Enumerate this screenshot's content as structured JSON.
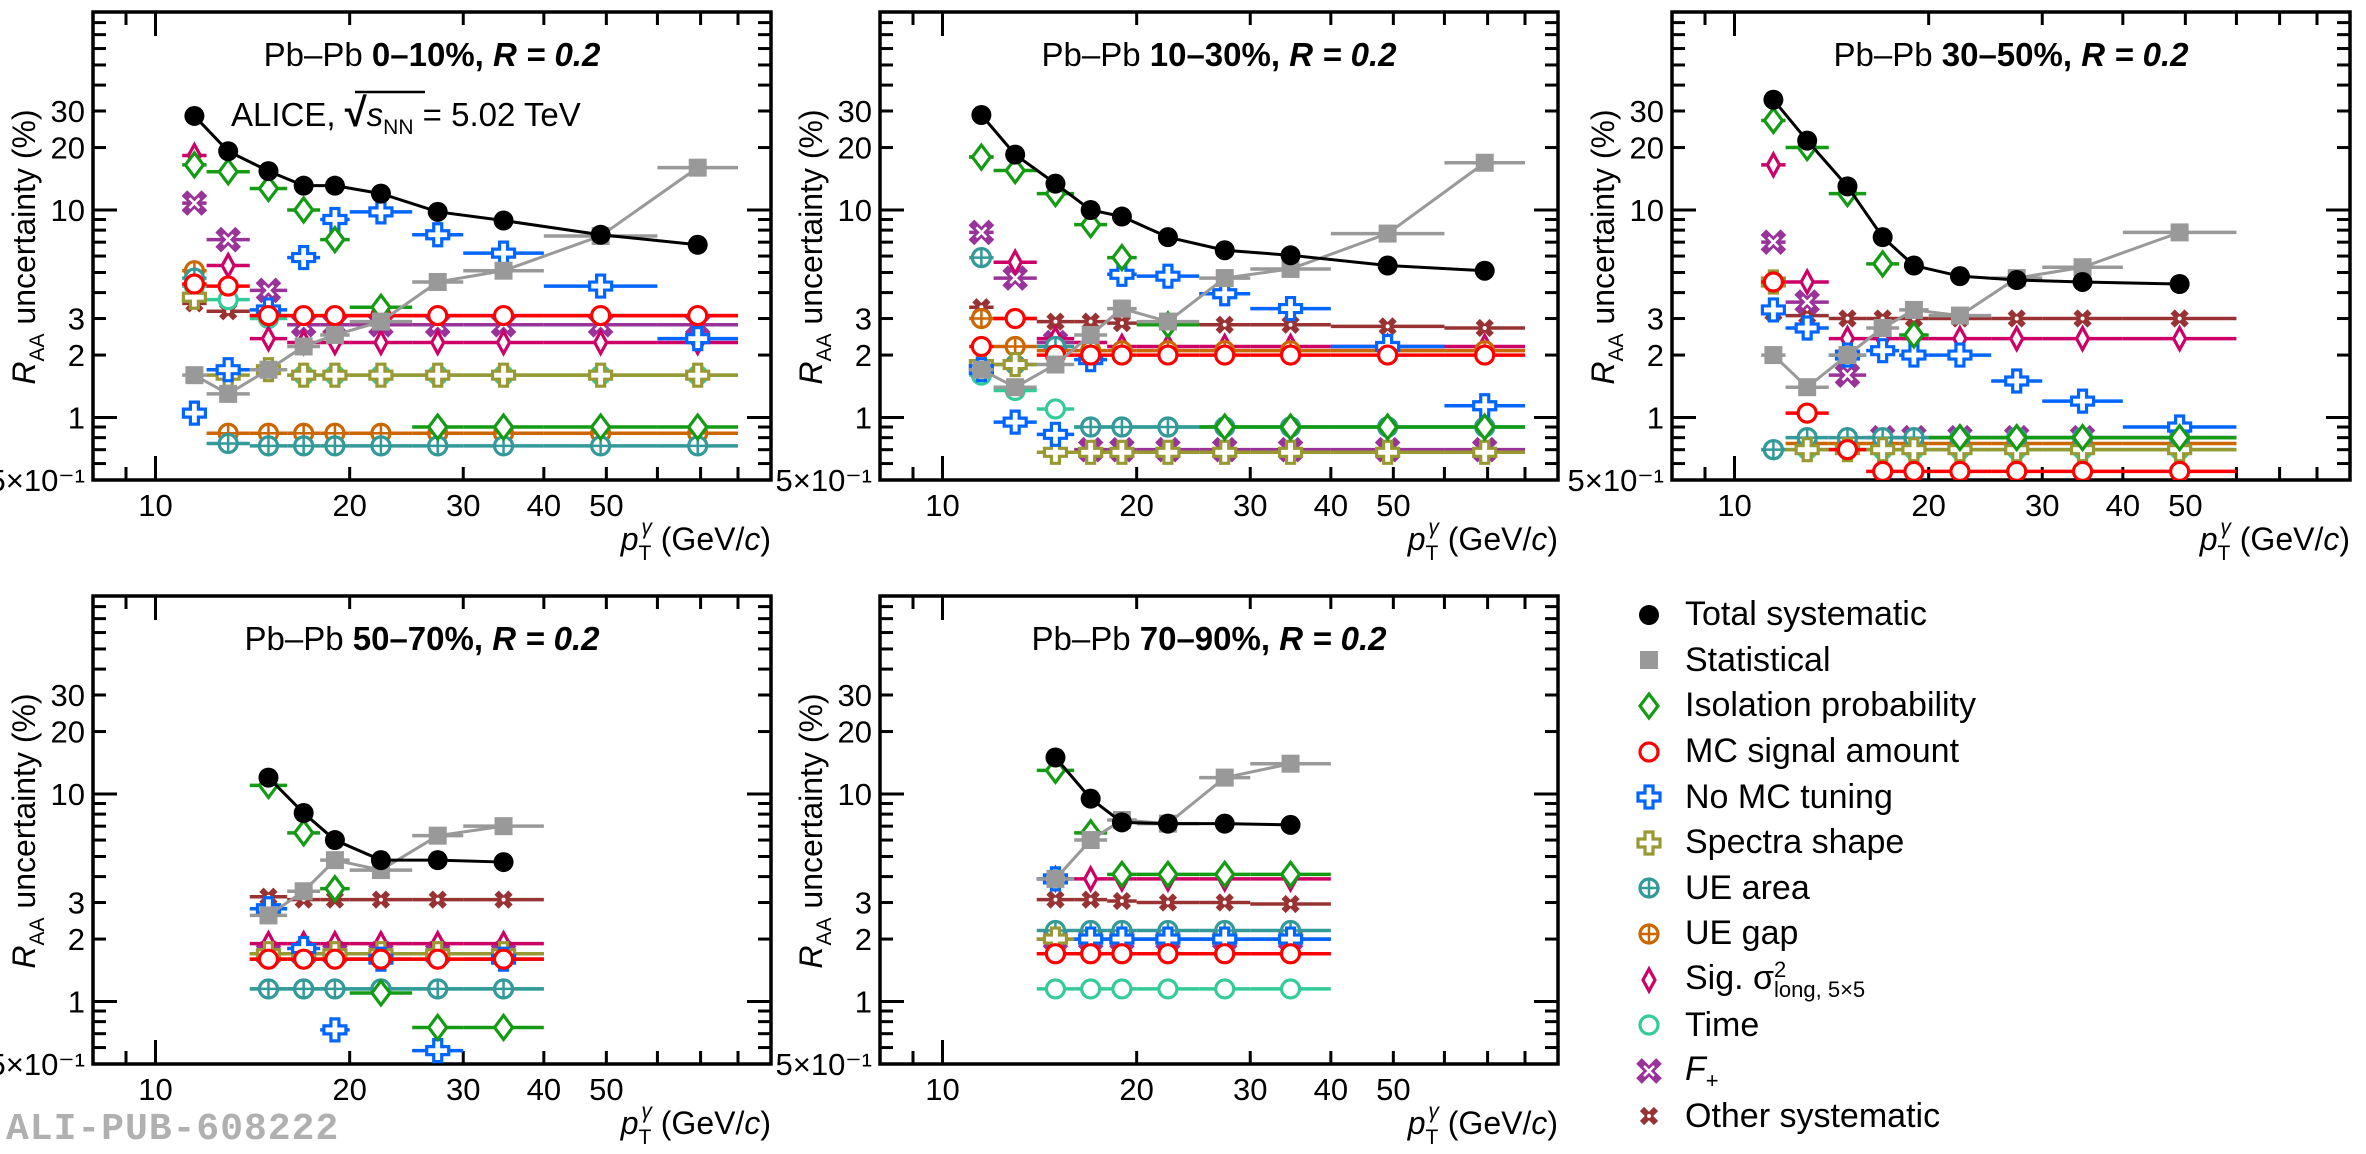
{
  "watermark": "ALI-PUB-608222",
  "colors": {
    "Total systematic": "#000000",
    "Statistical": "#999999",
    "Isolation probability": "#149b14",
    "MC signal amount": "#ff0000",
    "No MC tuning": "#0066ff",
    "Spectra shape": "#999933",
    "UE area": "#339999",
    "UE gap": "#cc6600",
    "Sig": "#cc0066",
    "Time": "#33cc99",
    "F+": "#993399",
    "Other systematic": "#993333"
  },
  "legend": [
    {
      "key": "Total systematic",
      "marker": "filled-circle",
      "label": "Total systematic"
    },
    {
      "key": "Statistical",
      "marker": "filled-square",
      "label": "Statistical"
    },
    {
      "key": "Isolation probability",
      "marker": "open-diamond",
      "label": "Isolation probability"
    },
    {
      "key": "MC signal amount",
      "marker": "open-circle",
      "label": "MC signal amount"
    },
    {
      "key": "No MC tuning",
      "marker": "open-cross",
      "label": "No MC tuning"
    },
    {
      "key": "Spectra shape",
      "marker": "open-cross",
      "label": "Spectra shape"
    },
    {
      "key": "UE area",
      "marker": "circle-plus",
      "label": "UE area"
    },
    {
      "key": "UE gap",
      "marker": "circle-plus",
      "label": "UE gap"
    },
    {
      "key": "Sig",
      "marker": "thin-diamond",
      "label": "Sig. σ",
      "sup": "2",
      "sub": "long, 5×5"
    },
    {
      "key": "Time",
      "marker": "open-circle",
      "label": "Time"
    },
    {
      "key": "F+",
      "marker": "open-x",
      "label": "F",
      "sub": "+"
    },
    {
      "key": "Other systematic",
      "marker": "small-x",
      "label": "Other systematic"
    }
  ],
  "chart_data": [
    {
      "type": "scatter",
      "title": "Pb–Pb 0–10%, R = 0.2",
      "title_parts": {
        "system": "Pb–Pb",
        "centrality": "0–10%",
        "radius": "R = 0.2"
      },
      "subtitle": "ALICE, √sNN = 5.02 TeV",
      "subtitle_parts": {
        "experiment": "ALICE,",
        "s": "s",
        "s_sub": "NN",
        "energy": "= 5.02 TeV"
      },
      "xlabel": "pTγ (GeV/c)",
      "ylabel": "RAA uncertainty (%)",
      "xscale": "log",
      "yscale": "log",
      "xlim": [
        8,
        90
      ],
      "ylim": [
        0.5,
        90
      ],
      "x_ticks": [
        "10",
        "20",
        "30",
        "40",
        "50"
      ],
      "y_ticks": [
        "5×10⁻¹",
        "1",
        "2",
        "3",
        "10",
        "20",
        "30"
      ],
      "x_edges": [
        11,
        12,
        14,
        16,
        18,
        20,
        25,
        30,
        40,
        60,
        80
      ],
      "series": [
        {
          "name": "Total systematic",
          "values": [
            28.4,
            19.2,
            15.4,
            13.1,
            13.1,
            12.0,
            9.8,
            8.9,
            7.6,
            6.8
          ]
        },
        {
          "name": "Statistical",
          "values": [
            1.6,
            1.3,
            1.7,
            2.2,
            2.5,
            2.9,
            4.5,
            5.1,
            7.5,
            16
          ]
        },
        {
          "name": "Isolation probability",
          "values": [
            16.5,
            15.3,
            12.7,
            10,
            7.2,
            3.4,
            0.9,
            0.9,
            0.9,
            0.9
          ]
        },
        {
          "name": "MC signal amount",
          "values": [
            4.4,
            4.3,
            3.1,
            3.1,
            3.1,
            3.1,
            3.1,
            3.1,
            3.1,
            3.1
          ]
        },
        {
          "name": "No MC tuning",
          "values": [
            1.05,
            1.7,
            3.3,
            5.9,
            9.0,
            9.8,
            7.6,
            6.2,
            4.3,
            2.4
          ]
        },
        {
          "name": "Spectra shape",
          "values": [
            3.8,
            1.6,
            1.7,
            1.6,
            1.6,
            1.6,
            1.6,
            1.6,
            1.6,
            1.6
          ]
        },
        {
          "name": "UE area",
          "values": [
            4.7,
            0.75,
            0.73,
            0.73,
            0.73,
            0.73,
            0.73,
            0.73,
            0.73,
            0.73
          ]
        },
        {
          "name": "UE gap",
          "values": [
            5.1,
            0.84,
            0.84,
            0.84,
            0.84,
            0.84,
            0.84,
            0.84,
            0.84,
            0.84
          ]
        },
        {
          "name": "Sig",
          "values": [
            18.3,
            5.4,
            2.4,
            2.3,
            2.3,
            2.3,
            2.3,
            2.3,
            2.3,
            2.3
          ]
        },
        {
          "name": "Time",
          "values": [
            4.3,
            3.7,
            3.0,
            1.6,
            1.6,
            1.6,
            1.6,
            1.6,
            1.6,
            1.6
          ]
        },
        {
          "name": "F+",
          "values": [
            10.8,
            7.2,
            4.1,
            2.8,
            2.8,
            2.8,
            2.8,
            2.8,
            2.8,
            2.8
          ]
        },
        {
          "name": "Other systematic",
          "values": [
            3.55,
            3.25,
            3.1,
            3.1,
            3.1,
            3.1,
            3.1,
            3.1,
            3.1,
            3.1
          ]
        }
      ]
    },
    {
      "type": "scatter",
      "title": "Pb–Pb 10–30%, R = 0.2",
      "title_parts": {
        "system": "Pb–Pb",
        "centrality": "10–30%",
        "radius": "R = 0.2"
      },
      "xlabel": "pTγ (GeV/c)",
      "ylabel": "RAA uncertainty (%)",
      "xscale": "log",
      "yscale": "log",
      "xlim": [
        8,
        90
      ],
      "ylim": [
        0.5,
        90
      ],
      "x_ticks": [
        "10",
        "20",
        "30",
        "40",
        "50"
      ],
      "y_ticks": [
        "5×10⁻¹",
        "1",
        "2",
        "3",
        "10",
        "20",
        "30"
      ],
      "x_edges": [
        11,
        12,
        14,
        16,
        18,
        20,
        25,
        30,
        40,
        60,
        80
      ],
      "series": [
        {
          "name": "Total systematic",
          "values": [
            28.7,
            18.5,
            13.4,
            10,
            9.3,
            7.4,
            6.4,
            6.05,
            5.4,
            5.1
          ]
        },
        {
          "name": "Statistical",
          "values": [
            1.7,
            1.4,
            1.8,
            2.5,
            3.35,
            2.9,
            4.7,
            5.2,
            7.7,
            16.9
          ]
        },
        {
          "name": "Isolation probability",
          "values": [
            18,
            15.5,
            12,
            8.5,
            5.9,
            2.8,
            0.9,
            0.9,
            0.9,
            0.9
          ]
        },
        {
          "name": "MC signal amount",
          "values": [
            2.2,
            3.0,
            2.0,
            2.0,
            2.0,
            2.0,
            2.0,
            2.0,
            2.0,
            2.0
          ]
        },
        {
          "name": "No MC tuning",
          "values": [
            1.7,
            0.95,
            0.83,
            1.9,
            4.9,
            4.8,
            3.95,
            3.35,
            2.2,
            1.14
          ]
        },
        {
          "name": "Spectra shape",
          "values": [
            1.8,
            1.8,
            0.68,
            0.68,
            0.68,
            0.68,
            0.68,
            0.68,
            0.68,
            0.68
          ]
        },
        {
          "name": "UE area",
          "values": [
            5.9,
            1.8,
            2.2,
            0.9,
            0.9,
            0.9,
            0.9,
            0.9,
            0.9,
            0.9
          ]
        },
        {
          "name": "UE gap",
          "values": [
            3.0,
            2.2,
            2.1,
            2.1,
            2.1,
            2.1,
            2.1,
            2.1,
            2.1,
            2.1
          ]
        },
        {
          "name": "Sig",
          "values": [
            18,
            5.6,
            2.4,
            2.3,
            2.2,
            2.2,
            2.2,
            2.2,
            2.2,
            2.2
          ]
        },
        {
          "name": "Time",
          "values": [
            1.6,
            1.35,
            1.1,
            0.9,
            0.9,
            0.9,
            0.9,
            0.9,
            0.9,
            0.9
          ]
        },
        {
          "name": "F+",
          "values": [
            7.8,
            4.7,
            2.3,
            0.7,
            0.7,
            0.7,
            0.7,
            0.7,
            0.7,
            0.7
          ]
        },
        {
          "name": "Other systematic",
          "values": [
            3.4,
            3.0,
            2.9,
            2.9,
            2.85,
            2.85,
            2.8,
            2.8,
            2.75,
            2.7
          ]
        }
      ]
    },
    {
      "type": "scatter",
      "title": "Pb–Pb 30–50%, R = 0.2",
      "title_parts": {
        "system": "Pb–Pb",
        "centrality": "30–50%",
        "radius": "R = 0.2"
      },
      "xlabel": "pTγ (GeV/c)",
      "ylabel": "RAA uncertainty (%)",
      "xscale": "log",
      "yscale": "log",
      "xlim": [
        8,
        90
      ],
      "ylim": [
        0.5,
        90
      ],
      "x_ticks": [
        "10",
        "20",
        "30",
        "40",
        "50"
      ],
      "y_ticks": [
        "5×10⁻¹",
        "1",
        "2",
        "3",
        "10",
        "20",
        "30"
      ],
      "x_edges": [
        11,
        12,
        14,
        16,
        18,
        20,
        25,
        30,
        40,
        60
      ],
      "series": [
        {
          "name": "Total systematic",
          "values": [
            34,
            21.6,
            13,
            7.4,
            5.4,
            4.8,
            4.6,
            4.5,
            4.4
          ]
        },
        {
          "name": "Statistical",
          "values": [
            2.0,
            1.4,
            2.0,
            2.7,
            3.3,
            3.1,
            4.7,
            5.3,
            7.8
          ]
        },
        {
          "name": "Isolation probability",
          "values": [
            27,
            20,
            12,
            5.5,
            2.5,
            0.8,
            0.8,
            0.8,
            0.8
          ]
        },
        {
          "name": "MC signal amount",
          "values": [
            4.5,
            1.05,
            0.7,
            0.55,
            0.55,
            0.55,
            0.55,
            0.55,
            0.55
          ]
        },
        {
          "name": "No MC tuning",
          "values": [
            3.3,
            2.7,
            2.0,
            2.1,
            2.0,
            2.0,
            1.5,
            1.2,
            0.9
          ]
        },
        {
          "name": "Spectra shape",
          "values": [
            4.5,
            0.7,
            0.7,
            0.7,
            0.7,
            0.7,
            0.7,
            0.7,
            0.7
          ]
        },
        {
          "name": "UE area",
          "values": [
            0.7,
            0.8,
            0.8,
            0.8,
            0.8,
            0.8,
            0.8,
            0.8,
            0.8
          ]
        },
        {
          "name": "UE gap",
          "values": [
            4.5,
            0.75,
            0.75,
            0.75,
            0.75,
            0.75,
            0.75,
            0.75,
            0.75
          ]
        },
        {
          "name": "Sig",
          "values": [
            16.5,
            4.5,
            2.4,
            2.4,
            2.4,
            2.4,
            2.4,
            2.4,
            2.4
          ]
        },
        {
          "name": "Time",
          "values": [
            0.7,
            0.7,
            0.7,
            0.7,
            0.7,
            0.7,
            0.7,
            0.7,
            0.7
          ]
        },
        {
          "name": "F+",
          "values": [
            7.0,
            3.6,
            1.6,
            0.8,
            0.8,
            0.8,
            0.8,
            0.8,
            0.8
          ]
        },
        {
          "name": "Other systematic",
          "values": [
            3.2,
            3.1,
            3.0,
            3.0,
            3.0,
            3.0,
            3.0,
            3.0,
            3.0
          ]
        }
      ]
    },
    {
      "type": "scatter",
      "title": "Pb–Pb 50–70%, R = 0.2",
      "title_parts": {
        "system": "Pb–Pb",
        "centrality": "50–70%",
        "radius": "R = 0.2"
      },
      "xlabel": "pTγ (GeV/c)",
      "ylabel": "RAA uncertainty (%)",
      "xscale": "log",
      "yscale": "log",
      "xlim": [
        8,
        90
      ],
      "ylim": [
        0.5,
        90
      ],
      "x_ticks": [
        "10",
        "20",
        "30",
        "40",
        "50"
      ],
      "y_ticks": [
        "5×10⁻¹",
        "1",
        "2",
        "3",
        "10",
        "20",
        "30"
      ],
      "x_edges": [
        14,
        16,
        18,
        20,
        25,
        30,
        40
      ],
      "series": [
        {
          "name": "Total systematic",
          "values": [
            12,
            8.1,
            6.0,
            4.8,
            4.8,
            4.7
          ]
        },
        {
          "name": "Statistical",
          "values": [
            2.6,
            3.4,
            4.8,
            4.3,
            6.3,
            7.0
          ]
        },
        {
          "name": "Isolation probability",
          "values": [
            11,
            6.5,
            3.5,
            1.1,
            0.75,
            0.75
          ]
        },
        {
          "name": "MC signal amount",
          "values": [
            1.6,
            1.6,
            1.6,
            1.6,
            1.6,
            1.6
          ]
        },
        {
          "name": "No MC tuning",
          "values": [
            2.8,
            1.8,
            0.73,
            1.6,
            0.58,
            1.6
          ]
        },
        {
          "name": "Spectra shape",
          "values": [
            1.7,
            1.7,
            1.7,
            1.7,
            1.7,
            1.7
          ]
        },
        {
          "name": "UE area",
          "values": [
            1.15,
            1.15,
            1.15,
            1.15,
            1.15,
            1.15
          ]
        },
        {
          "name": "UE gap",
          "values": [
            1.6,
            1.6,
            1.6,
            1.6,
            1.6,
            1.6
          ]
        },
        {
          "name": "Sig",
          "values": [
            1.9,
            1.9,
            1.9,
            1.9,
            1.9,
            1.9
          ]
        },
        {
          "name": "Time",
          "values": [
            1.15,
            1.15,
            1.15,
            1.15,
            1.15,
            1.15
          ]
        },
        {
          "name": "F+",
          "values": [
            1.7,
            1.7,
            1.7,
            1.7,
            1.7,
            1.7
          ]
        },
        {
          "name": "Other systematic",
          "values": [
            3.2,
            3.1,
            3.1,
            3.1,
            3.1,
            3.1
          ]
        }
      ]
    },
    {
      "type": "scatter",
      "title": "Pb–Pb 70–90%, R = 0.2",
      "title_parts": {
        "system": "Pb–Pb",
        "centrality": "70–90%",
        "radius": "R = 0.2"
      },
      "xlabel": "pTγ (GeV/c)",
      "ylabel": "RAA uncertainty (%)",
      "xscale": "log",
      "yscale": "log",
      "xlim": [
        8,
        90
      ],
      "ylim": [
        0.5,
        90
      ],
      "x_ticks": [
        "10",
        "20",
        "30",
        "40",
        "50"
      ],
      "y_ticks": [
        "5×10⁻¹",
        "1",
        "2",
        "3",
        "10",
        "20",
        "30"
      ],
      "x_edges": [
        14,
        16,
        18,
        20,
        25,
        30,
        40
      ],
      "series": [
        {
          "name": "Total systematic",
          "values": [
            15,
            9.5,
            7.3,
            7.2,
            7.2,
            7.1
          ]
        },
        {
          "name": "Statistical",
          "values": [
            3.9,
            6.0,
            7.5,
            7.2,
            12,
            14
          ]
        },
        {
          "name": "Isolation probability",
          "values": [
            13,
            6.5,
            4.1,
            4.1,
            4.1,
            4.1
          ]
        },
        {
          "name": "MC signal amount",
          "values": [
            1.7,
            1.7,
            1.7,
            1.7,
            1.7,
            1.7
          ]
        },
        {
          "name": "No MC tuning",
          "values": [
            3.9,
            2.0,
            2.0,
            2.0,
            2.0,
            2.0
          ]
        },
        {
          "name": "Spectra shape",
          "values": [
            2.0,
            2.0,
            2.0,
            2.0,
            2.0,
            2.0
          ]
        },
        {
          "name": "UE area",
          "values": [
            2.2,
            2.2,
            2.2,
            2.2,
            2.2,
            2.2
          ]
        },
        {
          "name": "UE gap",
          "values": [
            1.7,
            1.7,
            1.7,
            1.7,
            1.7,
            1.7
          ]
        },
        {
          "name": "Sig",
          "values": [
            3.9,
            3.9,
            3.9,
            3.9,
            3.9,
            3.9
          ]
        },
        {
          "name": "Time",
          "values": [
            1.15,
            1.15,
            1.15,
            1.15,
            1.15,
            1.15
          ]
        },
        {
          "name": "F+",
          "values": [
            2.0,
            2.0,
            2.0,
            2.0,
            2.0,
            2.0
          ]
        },
        {
          "name": "Other systematic",
          "values": [
            3.1,
            3.1,
            3.05,
            3.0,
            3.0,
            2.95
          ]
        }
      ]
    }
  ]
}
